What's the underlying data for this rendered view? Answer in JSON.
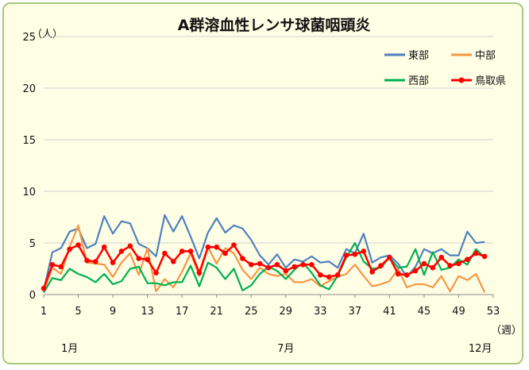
{
  "chart_data": {
    "type": "line",
    "title": "A群溶血性レンサ球菌咽頭炎",
    "y_unit": "（人）",
    "x_unit": "（週）",
    "ylim": [
      0,
      25
    ],
    "yticks": [
      0,
      5,
      10,
      15,
      20,
      25
    ],
    "xlim": [
      1,
      53
    ],
    "xticks": [
      1,
      5,
      9,
      13,
      17,
      21,
      25,
      29,
      33,
      37,
      41,
      45,
      49,
      53
    ],
    "month_labels": [
      {
        "week": 4,
        "label": "1月"
      },
      {
        "week": 29,
        "label": "7月"
      },
      {
        "week": 51.5,
        "label": "12月"
      }
    ],
    "grid": "horizontal",
    "legend_placement": "top-right",
    "x": [
      1,
      2,
      3,
      4,
      5,
      6,
      7,
      8,
      9,
      10,
      11,
      12,
      13,
      14,
      15,
      16,
      17,
      18,
      19,
      20,
      21,
      22,
      23,
      24,
      25,
      26,
      27,
      28,
      29,
      30,
      31,
      32,
      33,
      34,
      35,
      36,
      37,
      38,
      39,
      40,
      41,
      42,
      43,
      44,
      45,
      46,
      47,
      48,
      49,
      50,
      51,
      52
    ],
    "series": [
      {
        "name": "東部",
        "color": "#4f81bd",
        "values": [
          0.4,
          4.1,
          4.5,
          6.1,
          6.4,
          4.5,
          4.9,
          7.6,
          5.9,
          7.1,
          6.9,
          4.9,
          4.5,
          3.7,
          7.7,
          6.1,
          7.6,
          5.6,
          3.5,
          6.0,
          7.4,
          6.0,
          6.7,
          6.4,
          5.3,
          3.8,
          2.9,
          3.9,
          2.6,
          3.4,
          3.2,
          3.7,
          3.1,
          3.2,
          2.6,
          4.4,
          4.0,
          5.9,
          3.1,
          3.6,
          3.8,
          3.0,
          1.7,
          2.7,
          4.4,
          4.0,
          4.4,
          3.8,
          3.8,
          6.1,
          5.0,
          5.1
        ]
      },
      {
        "name": "中部",
        "color": "#f79646",
        "values": [
          0.3,
          2.6,
          2.0,
          4.6,
          6.7,
          3.1,
          3.0,
          2.9,
          1.7,
          3.1,
          4.0,
          1.9,
          4.5,
          0.3,
          1.5,
          0.7,
          2.2,
          4.0,
          1.8,
          4.6,
          3.0,
          4.5,
          4.0,
          2.4,
          1.5,
          2.6,
          2.0,
          1.8,
          2.0,
          1.2,
          1.2,
          1.5,
          0.8,
          1.3,
          1.7,
          2.0,
          2.9,
          1.8,
          0.8,
          1.0,
          1.3,
          2.5,
          0.7,
          1.0,
          1.0,
          0.7,
          1.8,
          0.3,
          1.8,
          1.4,
          2.0,
          0.2
        ]
      },
      {
        "name": "西部",
        "color": "#00b050",
        "values": [
          0.2,
          1.6,
          1.4,
          2.5,
          2.0,
          1.7,
          1.2,
          2.0,
          1.0,
          1.3,
          2.5,
          2.7,
          1.1,
          1.1,
          0.9,
          1.2,
          1.2,
          2.8,
          0.8,
          3.1,
          2.6,
          1.5,
          2.5,
          0.4,
          0.9,
          2.0,
          2.7,
          2.3,
          1.5,
          2.4,
          3.1,
          2.1,
          0.9,
          0.5,
          1.8,
          3.6,
          5.0,
          3.2,
          2.5,
          2.6,
          3.6,
          2.6,
          2.7,
          4.4,
          1.9,
          4.1,
          2.4,
          2.6,
          3.4,
          2.9,
          4.4,
          3.6
        ]
      },
      {
        "name": "鳥取県",
        "color": "#ff0000",
        "values": [
          0.6,
          2.9,
          2.7,
          4.4,
          4.8,
          3.3,
          3.2,
          4.6,
          3.1,
          4.2,
          4.7,
          3.5,
          3.4,
          2.1,
          4.0,
          3.2,
          4.2,
          4.2,
          2.1,
          4.6,
          4.6,
          4.0,
          4.8,
          3.5,
          2.9,
          3.0,
          2.6,
          2.9,
          2.3,
          2.7,
          2.9,
          2.9,
          1.9,
          1.7,
          1.9,
          3.8,
          3.9,
          4.2,
          2.2,
          2.8,
          3.6,
          2.0,
          1.9,
          2.3,
          3.0,
          2.6,
          3.6,
          2.8,
          3.0,
          3.4,
          4.0,
          3.7
        ]
      }
    ]
  }
}
